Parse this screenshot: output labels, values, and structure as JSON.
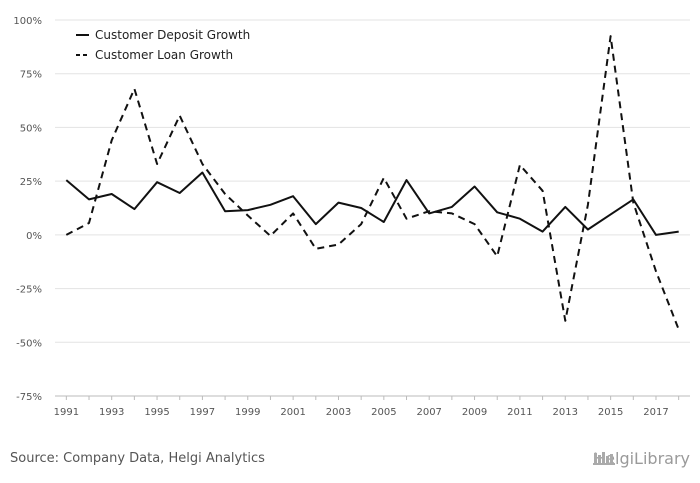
{
  "chart_data": {
    "type": "line",
    "title": "",
    "xlabel": "",
    "ylabel": "",
    "x": [
      1991,
      1992,
      1993,
      1994,
      1995,
      1996,
      1997,
      1998,
      1999,
      2000,
      2001,
      2002,
      2003,
      2004,
      2005,
      2006,
      2007,
      2008,
      2009,
      2010,
      2011,
      2012,
      2013,
      2014,
      2015,
      2016,
      2017,
      2018
    ],
    "x_tick_labels": [
      "1991",
      "1993",
      "1995",
      "1997",
      "1999",
      "2001",
      "2003",
      "2005",
      "2007",
      "2009",
      "2011",
      "2013",
      "2015",
      "2017"
    ],
    "x_tick_values": [
      1991,
      1993,
      1995,
      1997,
      1999,
      2001,
      2003,
      2005,
      2007,
      2009,
      2011,
      2013,
      2015,
      2017
    ],
    "ylim": [
      -75,
      100
    ],
    "y_ticks": [
      100,
      75,
      50,
      25,
      0,
      -25,
      -50,
      -75
    ],
    "y_tick_labels": [
      "100%",
      "75%",
      "50%",
      "25%",
      "0%",
      "-25%",
      "-50%",
      "-75%"
    ],
    "grid": true,
    "legend_position": "top-left",
    "series": [
      {
        "name": "Customer Deposit Growth",
        "style": "solid",
        "color": "#111111",
        "values": [
          25.5,
          16.5,
          19,
          12,
          24.5,
          19.5,
          29,
          11,
          11.5,
          14,
          18,
          5,
          15,
          12.5,
          6,
          25.5,
          10,
          13,
          22.5,
          10.5,
          7.5,
          1.5,
          13,
          2.5,
          9.5,
          16.5,
          0,
          1.5
        ]
      },
      {
        "name": "Customer Loan Growth",
        "style": "dashed",
        "color": "#111111",
        "values": [
          0,
          5.5,
          44,
          68,
          33,
          55.5,
          33,
          19,
          9,
          -0.5,
          10,
          -6.5,
          -4.5,
          5,
          26.5,
          7.5,
          11,
          10,
          5,
          -10,
          32.5,
          20.5,
          -40,
          14,
          92.5,
          15,
          -17,
          -44
        ]
      }
    ]
  },
  "footer": {
    "source": "Source: Company Data, Helgi Analytics",
    "brand": "HelgiLibrary"
  }
}
